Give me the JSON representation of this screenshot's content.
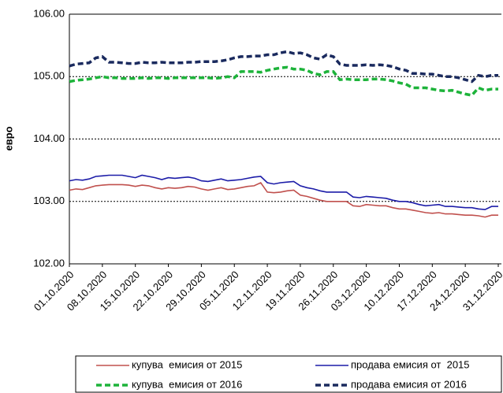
{
  "chart_data": {
    "type": "line",
    "y_label": "евро",
    "categories": [
      "01.10.2020",
      null,
      null,
      null,
      null,
      "08.10.2020",
      null,
      null,
      null,
      null,
      "15.10.2020",
      null,
      null,
      null,
      null,
      "22.10.2020",
      null,
      null,
      null,
      null,
      "29.10.2020",
      null,
      null,
      null,
      null,
      "05.11.2020",
      null,
      null,
      null,
      null,
      "12.11.2020",
      null,
      null,
      null,
      null,
      "19.11.2020",
      null,
      null,
      null,
      null,
      "26.11.2020",
      null,
      null,
      null,
      null,
      "03.12.2020",
      null,
      null,
      null,
      null,
      "10.12.2020",
      null,
      null,
      null,
      null,
      "17.12.2020",
      null,
      null,
      null,
      null,
      "24.12.2020",
      null,
      null,
      null,
      null,
      "31.12.2020"
    ],
    "series": [
      {
        "name": "купува  емисия от 2015",
        "color": "#c0504d",
        "style": "solid",
        "values": [
          103.18,
          103.2,
          103.19,
          103.22,
          103.25,
          103.26,
          103.27,
          103.27,
          103.27,
          103.26,
          103.24,
          103.26,
          103.25,
          103.22,
          103.2,
          103.22,
          103.21,
          103.22,
          103.24,
          103.23,
          103.2,
          103.18,
          103.2,
          103.22,
          103.19,
          103.2,
          103.22,
          103.24,
          103.25,
          103.3,
          103.15,
          103.14,
          103.15,
          103.17,
          103.18,
          103.1,
          103.08,
          103.05,
          103.02,
          103.0,
          103.0,
          103.0,
          103.0,
          102.93,
          102.92,
          102.95,
          102.94,
          102.93,
          102.93,
          102.9,
          102.88,
          102.88,
          102.86,
          102.84,
          102.82,
          102.81,
          102.82,
          102.8,
          102.8,
          102.79,
          102.78,
          102.78,
          102.77,
          102.75,
          102.78,
          102.78
        ]
      },
      {
        "name": "продава емисия от  2015",
        "color": "#1c1ca8",
        "style": "solid",
        "values": [
          103.33,
          103.35,
          103.34,
          103.36,
          103.4,
          103.41,
          103.42,
          103.42,
          103.42,
          103.4,
          103.38,
          103.42,
          103.4,
          103.38,
          103.35,
          103.38,
          103.37,
          103.38,
          103.39,
          103.37,
          103.33,
          103.32,
          103.34,
          103.36,
          103.33,
          103.34,
          103.35,
          103.37,
          103.39,
          103.4,
          103.3,
          103.28,
          103.3,
          103.31,
          103.32,
          103.25,
          103.22,
          103.2,
          103.17,
          103.15,
          103.15,
          103.15,
          103.15,
          103.07,
          103.06,
          103.08,
          103.07,
          103.06,
          103.05,
          103.02,
          103.0,
          103.0,
          102.98,
          102.95,
          102.93,
          102.94,
          102.95,
          102.92,
          102.92,
          102.91,
          102.9,
          102.9,
          102.88,
          102.87,
          102.92,
          102.92
        ]
      },
      {
        "name": "купува  емисия от 2016",
        "color": "#1db33a",
        "style": "dashed",
        "values": [
          104.92,
          104.94,
          104.95,
          104.96,
          104.98,
          105.0,
          104.98,
          104.98,
          104.97,
          104.97,
          104.97,
          104.98,
          104.97,
          104.98,
          104.98,
          104.97,
          104.98,
          104.98,
          104.98,
          104.98,
          104.98,
          104.98,
          104.97,
          104.98,
          105.0,
          104.98,
          105.08,
          105.08,
          105.08,
          105.07,
          105.1,
          105.12,
          105.14,
          105.15,
          105.12,
          105.12,
          105.1,
          105.05,
          105.03,
          105.08,
          105.08,
          104.95,
          104.96,
          104.95,
          104.95,
          104.95,
          104.96,
          104.96,
          104.95,
          104.93,
          104.9,
          104.88,
          104.82,
          104.82,
          104.82,
          104.8,
          104.78,
          104.77,
          104.78,
          104.75,
          104.72,
          104.7,
          104.82,
          104.78,
          104.8,
          104.8
        ]
      },
      {
        "name": "продава емисия от 2016",
        "color": "#1a2a5e",
        "style": "dashed",
        "values": [
          105.17,
          105.2,
          105.21,
          105.22,
          105.3,
          105.32,
          105.23,
          105.23,
          105.22,
          105.21,
          105.21,
          105.23,
          105.22,
          105.22,
          105.23,
          105.22,
          105.22,
          105.22,
          105.23,
          105.23,
          105.24,
          105.24,
          105.24,
          105.25,
          105.27,
          105.3,
          105.32,
          105.32,
          105.33,
          105.33,
          105.35,
          105.35,
          105.38,
          105.4,
          105.37,
          105.38,
          105.35,
          105.3,
          105.28,
          105.35,
          105.32,
          105.2,
          105.18,
          105.18,
          105.18,
          105.19,
          105.18,
          105.19,
          105.18,
          105.16,
          105.12,
          105.1,
          105.05,
          105.05,
          105.04,
          105.04,
          105.02,
          105.0,
          105.0,
          104.98,
          104.95,
          104.92,
          105.02,
          105.0,
          105.02,
          105.02
        ]
      }
    ],
    "ylim": [
      102,
      106
    ],
    "yticks": [
      {
        "value": 102,
        "label": "102.00"
      },
      {
        "value": 103,
        "label": "103.00"
      },
      {
        "value": 104,
        "label": "104.00"
      },
      {
        "value": 105,
        "label": "105.00"
      },
      {
        "value": 106,
        "label": "106.00"
      }
    ],
    "grid": true,
    "legend": "bottom"
  }
}
